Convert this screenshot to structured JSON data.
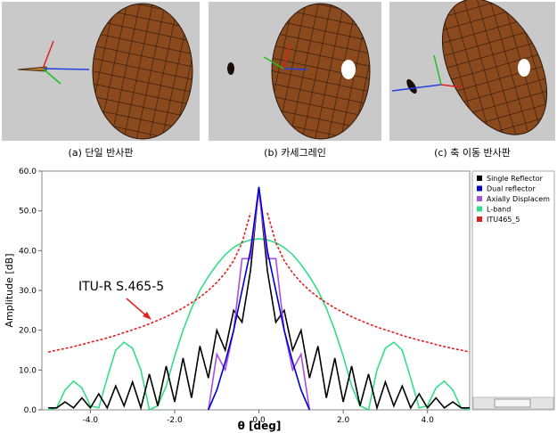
{
  "figure": {
    "captions": [
      "(a) 단일 반사판",
      "(b) 카세그레인",
      "(c) 축 이동 반사판"
    ]
  },
  "chart_data": {
    "type": "line",
    "x": [
      -5.0,
      -4.8,
      -4.6,
      -4.4,
      -4.2,
      -4.0,
      -3.8,
      -3.6,
      -3.4,
      -3.2,
      -3.0,
      -2.8,
      -2.6,
      -2.4,
      -2.2,
      -2.0,
      -1.8,
      -1.6,
      -1.4,
      -1.2,
      -1.0,
      -0.8,
      -0.6,
      -0.4,
      -0.2,
      0.0,
      0.2,
      0.4,
      0.6,
      0.8,
      1.0,
      1.2,
      1.4,
      1.6,
      1.8,
      2.0,
      2.2,
      2.4,
      2.6,
      2.8,
      3.0,
      3.2,
      3.4,
      3.6,
      3.8,
      4.0,
      4.2,
      4.4,
      4.6,
      4.8,
      5.0
    ],
    "series": [
      {
        "name": "Single Reflector",
        "color": "#000000",
        "values": [
          0.5,
          0.5,
          2,
          0.5,
          3,
          0.5,
          4,
          0.5,
          6,
          1,
          7,
          0.5,
          9,
          1,
          11,
          2,
          13,
          3,
          16,
          8,
          20,
          15,
          25,
          22,
          35,
          56,
          35,
          22,
          25,
          15,
          20,
          8,
          16,
          3,
          13,
          2,
          11,
          1,
          9,
          0.5,
          7,
          1,
          6,
          0.5,
          4,
          0.5,
          3,
          0.5,
          2,
          0.5,
          0.5
        ]
      },
      {
        "name": "Dual reflector",
        "color": "#0000cc",
        "values": [
          null,
          null,
          null,
          null,
          null,
          null,
          null,
          null,
          null,
          null,
          null,
          null,
          null,
          null,
          null,
          null,
          null,
          null,
          null,
          0,
          5,
          12,
          20,
          30,
          40,
          56,
          40,
          30,
          20,
          12,
          5,
          0,
          null,
          null,
          null,
          null,
          null,
          null,
          null,
          null,
          null,
          null,
          null,
          null,
          null,
          null,
          null,
          null,
          null,
          null,
          null
        ]
      },
      {
        "name": "Axially Displacem",
        "color": "#a64fe0",
        "values": [
          null,
          null,
          null,
          null,
          null,
          null,
          null,
          null,
          null,
          null,
          null,
          null,
          null,
          null,
          null,
          null,
          null,
          null,
          null,
          0,
          14,
          10,
          20,
          38,
          38,
          55,
          38,
          38,
          20,
          10,
          14,
          0,
          null,
          null,
          null,
          null,
          null,
          null,
          null,
          null,
          null,
          null,
          null,
          null,
          null,
          null,
          null,
          null,
          null,
          null,
          null
        ]
      },
      {
        "name": "L-band",
        "color": "#33dd88",
        "values": [
          0,
          0.5,
          5,
          7.2,
          5.5,
          1,
          0.5,
          8,
          15,
          17,
          15.5,
          10,
          0,
          1,
          6,
          13.5,
          20,
          25.5,
          30,
          33.5,
          36.5,
          39,
          40.8,
          42,
          42.7,
          43,
          42.7,
          42,
          40.8,
          39,
          36.5,
          33.5,
          30,
          25.5,
          20,
          13.5,
          6,
          1,
          0,
          10,
          15.5,
          17,
          15,
          8,
          0.5,
          1,
          5.5,
          7.2,
          5,
          0.5,
          0
        ]
      },
      {
        "name": "ITU465_5",
        "color": "#e02020",
        "dashed": true,
        "values": [
          14.5,
          15.0,
          15.4,
          15.9,
          16.4,
          17.0,
          17.5,
          18.1,
          18.7,
          19.4,
          20.1,
          20.8,
          21.6,
          22.5,
          23.4,
          24.5,
          25.6,
          26.9,
          28.3,
          30.0,
          32,
          34.4,
          37.5,
          42.0,
          49.5,
          null,
          49.5,
          42.0,
          37.5,
          34.4,
          32,
          30.0,
          28.3,
          26.9,
          25.6,
          24.5,
          23.4,
          22.5,
          21.6,
          20.8,
          20.1,
          19.4,
          18.7,
          18.1,
          17.5,
          17.0,
          16.4,
          15.9,
          15.4,
          15.0,
          14.5
        ]
      }
    ],
    "xlim": [
      -5.15,
      5.0
    ],
    "ylim": [
      0,
      60
    ],
    "xticks": [
      {
        "value": -4,
        "label": "-4.0"
      },
      {
        "value": -2,
        "label": "-2.0"
      },
      {
        "value": 0,
        "label": "0.0"
      },
      {
        "value": 2,
        "label": "2.0"
      },
      {
        "value": 4,
        "label": "4.0"
      }
    ],
    "yticks": [
      {
        "value": 0,
        "label": "0.0"
      },
      {
        "value": 10,
        "label": "10.0"
      },
      {
        "value": 20,
        "label": "20.0"
      },
      {
        "value": 30,
        "label": "30.0"
      },
      {
        "value": 40,
        "label": "40.0"
      },
      {
        "value": 50,
        "label": "50.0"
      },
      {
        "value": 60,
        "label": "60.0"
      }
    ],
    "xlabel": "θ [deg]",
    "ylabel": "Amplitude [dB]",
    "annotation": "ITU-R S.465-5",
    "grid": false
  }
}
